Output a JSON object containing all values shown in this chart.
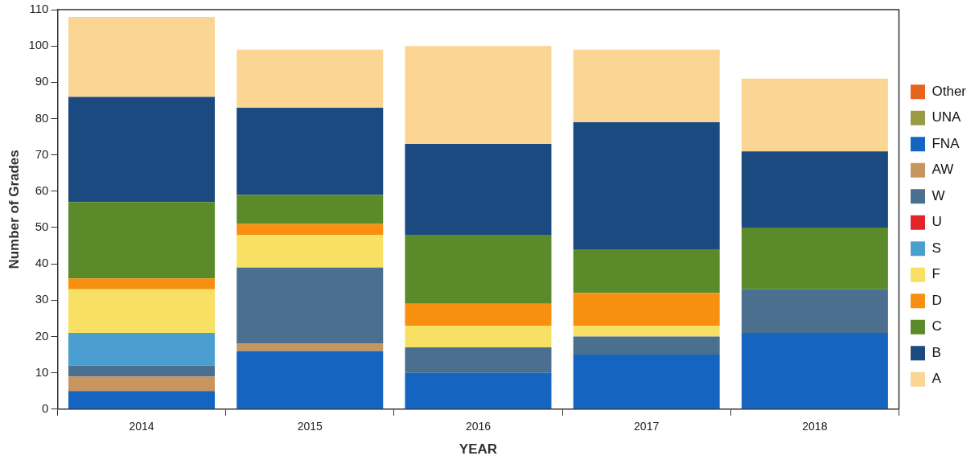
{
  "chart_data": {
    "type": "bar",
    "stacked": true,
    "xlabel": "YEAR",
    "ylabel": "Number of Grades",
    "categories": [
      "2014",
      "2015",
      "2016",
      "2017",
      "2018"
    ],
    "ylim": [
      0,
      110
    ],
    "yticks": [
      0,
      10,
      20,
      30,
      40,
      50,
      60,
      70,
      80,
      90,
      100,
      110
    ],
    "grid": false,
    "legend": "right",
    "series": [
      {
        "name": "Other",
        "color": "#e8641c",
        "values": [
          0,
          0,
          0,
          0,
          0
        ]
      },
      {
        "name": "UNA",
        "color": "#9a9a45",
        "values": [
          0,
          0,
          0,
          0,
          0
        ]
      },
      {
        "name": "FNA",
        "color": "#1565c0",
        "values": [
          5,
          16,
          10,
          15,
          21
        ]
      },
      {
        "name": "AW",
        "color": "#c8955e",
        "values": [
          4,
          2,
          0,
          0,
          0
        ]
      },
      {
        "name": "W",
        "color": "#4a6f8f",
        "values": [
          3,
          21,
          7,
          5,
          12
        ]
      },
      {
        "name": "U",
        "color": "#e0242a",
        "values": [
          0,
          0,
          0,
          0,
          0
        ]
      },
      {
        "name": "S",
        "color": "#4a9fd0",
        "values": [
          9,
          0,
          0,
          0,
          0
        ]
      },
      {
        "name": "F",
        "color": "#f7e063",
        "values": [
          12,
          9,
          6,
          3,
          0
        ]
      },
      {
        "name": "D",
        "color": "#f7900f",
        "values": [
          3,
          3,
          6,
          9,
          0
        ]
      },
      {
        "name": "C",
        "color": "#5a8a2a",
        "values": [
          21,
          8,
          19,
          12,
          17
        ]
      },
      {
        "name": "B",
        "color": "#1a4a80",
        "values": [
          29,
          24,
          25,
          35,
          21
        ]
      },
      {
        "name": "A",
        "color": "#fad593",
        "values": [
          22,
          16,
          27,
          20,
          20
        ]
      }
    ]
  }
}
